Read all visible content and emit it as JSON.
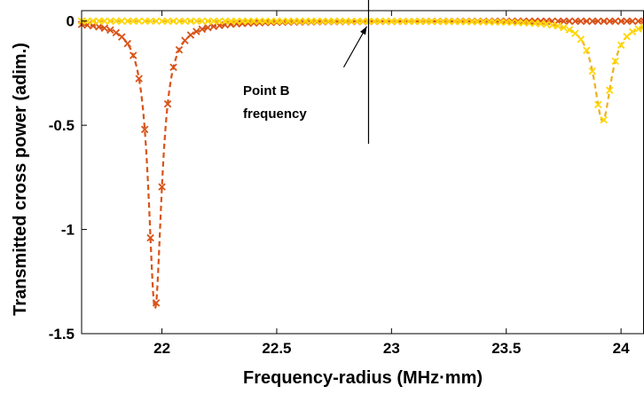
{
  "chart_data": {
    "type": "line",
    "title": "",
    "xlabel": "Frequency-radius (MHz·mm)",
    "ylabel": "Transmitted cross power (adim.)",
    "xlim": [
      21.65,
      24.1
    ],
    "ylim": [
      -1.5,
      0.05
    ],
    "xticks": [
      22,
      22.5,
      23,
      23.5,
      24
    ],
    "xtick_labels": [
      "22",
      "22.5",
      "23",
      "23.5",
      "24"
    ],
    "yticks": [
      0,
      -0.5,
      -1,
      -1.5
    ],
    "ytick_labels": [
      "0",
      "-0.5",
      "-1",
      "-1.5"
    ],
    "grid": false,
    "series": [
      {
        "color": "#d95319",
        "line_style": "dashed",
        "marker": "x",
        "resonance": {
          "x0": 21.97,
          "depth": 1.38,
          "gamma": 0.035,
          "min_value": -1.38
        },
        "x_range": [
          21.65,
          24.1
        ],
        "marker_step": 0.025
      },
      {
        "color": "#edb120",
        "marker_color": "#ffd700",
        "line_style": "dashed",
        "marker": "x",
        "resonance": {
          "x0": 23.92,
          "depth": 0.48,
          "gamma": 0.045,
          "min_value": -0.48
        },
        "x_range": [
          21.65,
          24.1
        ],
        "marker_step": 0.025
      }
    ],
    "annotations": [
      {
        "text_lines": [
          "Point B",
          "frequency"
        ],
        "vline_x": 22.9,
        "arrow_to": [
          22.9,
          0.0
        ]
      }
    ]
  }
}
